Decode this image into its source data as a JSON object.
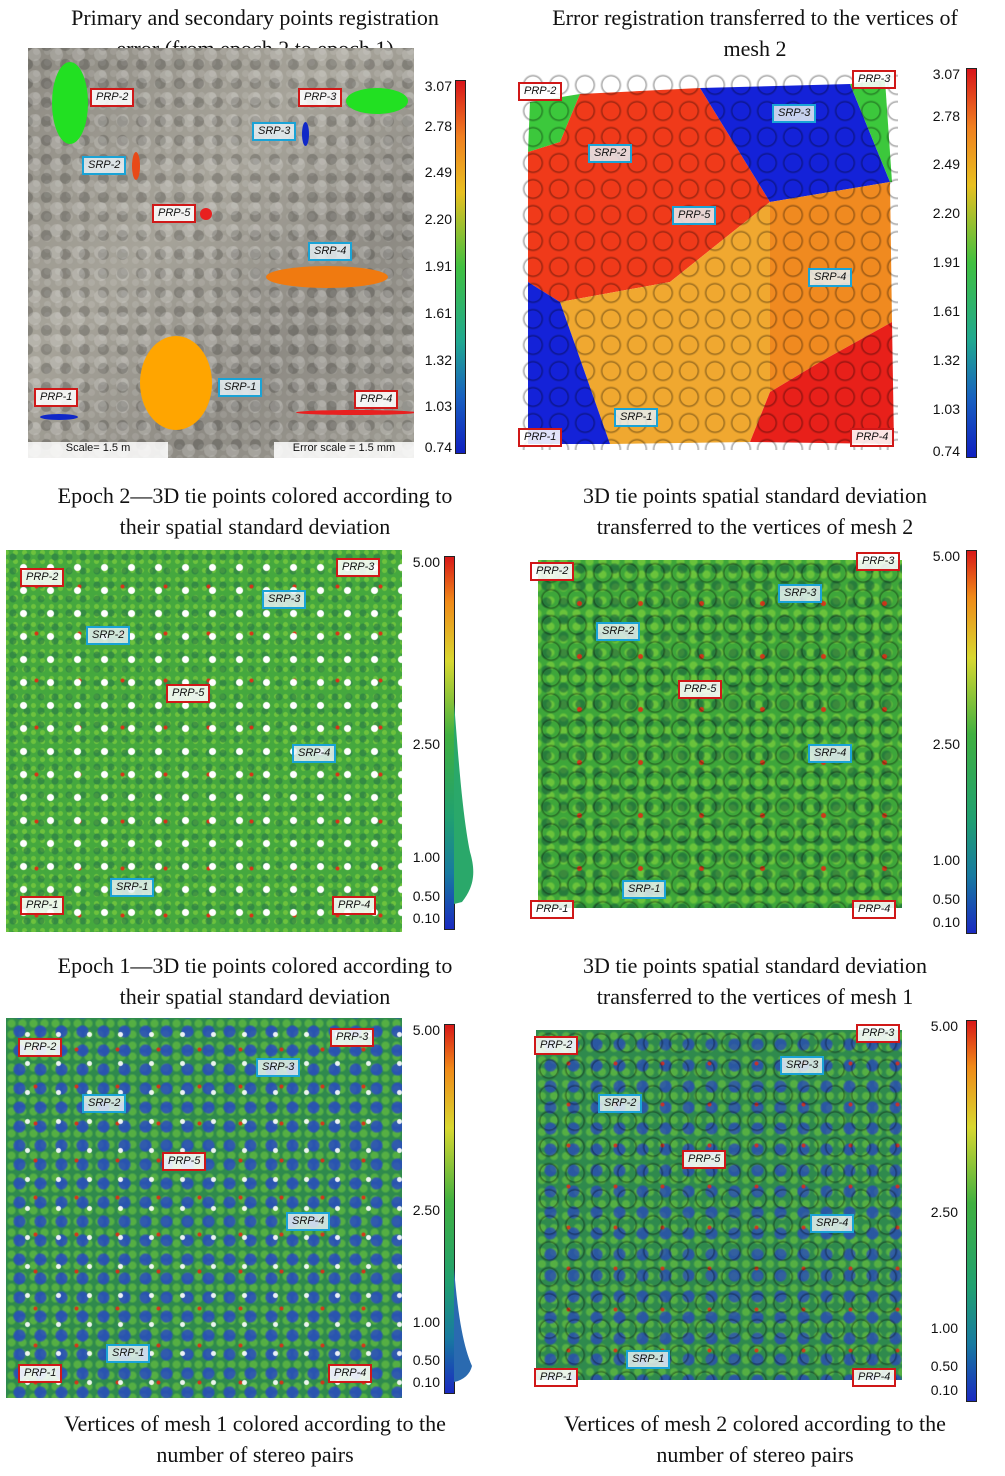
{
  "captions": {
    "c1": [
      "Primary and secondary points registration",
      "error (from epoch 2 to epoch 1)"
    ],
    "c2": [
      "Error registration transferred to the vertices of",
      "mesh 2"
    ],
    "c3": [
      "Epoch 2—3D tie points colored according to",
      "their spatial standard deviation"
    ],
    "c4": [
      "3D tie points spatial standard deviation",
      "transferred to the vertices of mesh 2"
    ],
    "c5": [
      "Epoch 1—3D tie points colored according to",
      "their spatial standard deviation"
    ],
    "c6": [
      "3D tie points spatial standard deviation",
      "transferred to the vertices of mesh 1"
    ],
    "c7": [
      "Vertices of mesh 1 colored according to the",
      "number of stereo pairs"
    ],
    "c8": [
      "Vertices of mesh 2 colored according to the",
      "number of stereo pairs"
    ]
  },
  "labels": {
    "prp1": "PRP-1",
    "prp2": "PRP-2",
    "prp3": "PRP-3",
    "prp4": "PRP-4",
    "prp5": "PRP-5",
    "srp1": "SRP-1",
    "srp2": "SRP-2",
    "srp3": "SRP-3",
    "srp4": "SRP-4"
  },
  "scales": {
    "error": [
      "3.07",
      "2.78",
      "2.49",
      "2.20",
      "1.91",
      "1.61",
      "1.32",
      "1.03",
      "0.74"
    ],
    "stdev": [
      "5.00",
      "2.50",
      "1.00",
      "0.50",
      "0.10"
    ]
  },
  "scalebars": {
    "left": "Scale= 1.5 m",
    "right": "Error scale = 1.5 mm"
  },
  "colors": {
    "prp_border": "#d01818",
    "srp_border": "#1aa3d6",
    "ellipse_green": "#22e022",
    "ellipse_orange": "#ffa500",
    "ellipse_red": "#e82020",
    "ellipse_blue": "#1028c8",
    "region_red": "#f03a1a",
    "region_orange": "#f08a20",
    "region_lightorange": "#f0a830",
    "region_blue": "#1422d8",
    "region_green": "#3cc83c"
  }
}
